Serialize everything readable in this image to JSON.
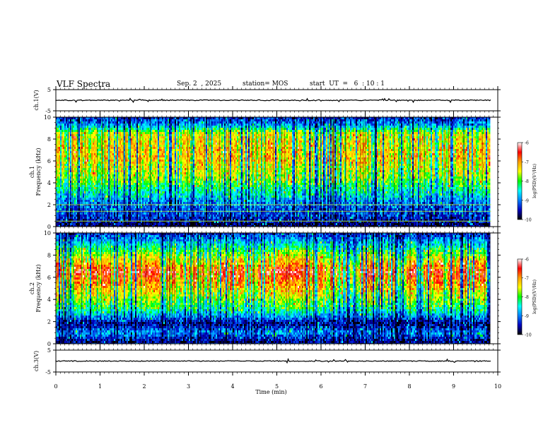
{
  "header": {
    "title": "VLF Spectra",
    "date": "Sep. 2  , 2025",
    "station": "station= MOS",
    "start": "start  UT  =   6  : 10 : 1"
  },
  "chart_data": [
    {
      "id": "ch1-waveform",
      "type": "line",
      "ylabel": "ch.1(V)",
      "ylim": [
        -5,
        5
      ],
      "yticks": [
        5,
        -5
      ],
      "description_value": "near-constant trace around y=0 with small spikes",
      "baseline": 0
    },
    {
      "id": "ch1-spectrogram",
      "type": "heatmap",
      "ylabel": "ch.1\nFrequency (kHz)",
      "ylim": [
        0,
        10
      ],
      "yticks": [
        0,
        2,
        4,
        6,
        8,
        10
      ],
      "horizontal_lines_khz": [
        0.5,
        1.4,
        2.0
      ],
      "intensity_profile": [
        {
          "freq_khz": 0.0,
          "level": 0.05
        },
        {
          "freq_khz": 1.0,
          "level": 0.2
        },
        {
          "freq_khz": 2.0,
          "level": 0.25
        },
        {
          "freq_khz": 3.0,
          "level": 0.4
        },
        {
          "freq_khz": 4.5,
          "level": 0.6
        },
        {
          "freq_khz": 6.5,
          "level": 0.72
        },
        {
          "freq_khz": 8.5,
          "level": 0.65
        },
        {
          "freq_khz": 9.3,
          "level": 0.3
        },
        {
          "freq_khz": 10.0,
          "level": 0.15
        }
      ]
    },
    {
      "id": "ch2-spectrogram",
      "type": "heatmap",
      "ylabel": "ch.2\nFrequency (kHz)",
      "ylim": [
        0,
        10
      ],
      "yticks": [
        0,
        2,
        4,
        6,
        8,
        10
      ],
      "intensity_profile": [
        {
          "freq_khz": 0.0,
          "level": 0.05
        },
        {
          "freq_khz": 1.0,
          "level": 0.3
        },
        {
          "freq_khz": 1.8,
          "level": 0.1
        },
        {
          "freq_khz": 3.0,
          "level": 0.45
        },
        {
          "freq_khz": 4.5,
          "level": 0.65
        },
        {
          "freq_khz": 6.5,
          "level": 0.88
        },
        {
          "freq_khz": 8.0,
          "level": 0.6
        },
        {
          "freq_khz": 9.2,
          "level": 0.35
        },
        {
          "freq_khz": 10.0,
          "level": 0.15
        }
      ]
    },
    {
      "id": "ch3-waveform",
      "type": "line",
      "ylabel": "ch.3(V)",
      "ylim": [
        -5,
        5
      ],
      "yticks": [
        5,
        -5
      ],
      "baseline": 0
    }
  ],
  "x_axis": {
    "label": "Time  (min)",
    "range": [
      0,
      10
    ],
    "ticks": [
      "0",
      "1",
      "2",
      "3",
      "4",
      "5",
      "6",
      "7",
      "8",
      "9",
      "10"
    ],
    "data_end_min": 9.85
  },
  "colorbar": {
    "label": "log(PSD)(V²/Hz)",
    "ticks": [
      "-6",
      "-7",
      "-8",
      "-9",
      "-10"
    ],
    "range": [
      -10,
      -6
    ],
    "colors": [
      "#ffffff",
      "#ff0000",
      "#ffa000",
      "#ffff00",
      "#00ff00",
      "#00ffff",
      "#0080ff",
      "#0000c0",
      "#000000"
    ]
  }
}
